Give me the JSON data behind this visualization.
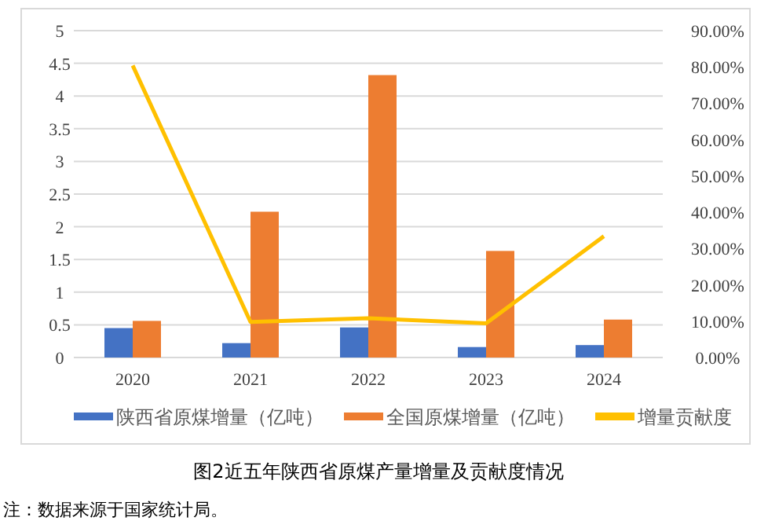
{
  "chart_data": {
    "type": "bar",
    "title": "图2近五年陕西省原煤产量增量及贡献度情况",
    "categories": [
      "2020",
      "2021",
      "2022",
      "2023",
      "2024"
    ],
    "series": [
      {
        "name": "陕西省原煤增量（亿吨）",
        "color": "#4472c4",
        "values": [
          0.45,
          0.22,
          0.46,
          0.16,
          0.19
        ]
      },
      {
        "name": "全国原煤增量（亿吨）",
        "color": "#ed7d31",
        "values": [
          0.56,
          2.23,
          4.32,
          1.63,
          0.58
        ]
      },
      {
        "name": "增量贡献度",
        "type": "line",
        "axis": "y2",
        "color": "#ffc000",
        "values": [
          80.4,
          9.8,
          10.8,
          9.4,
          33.4
        ]
      }
    ],
    "ylim": [
      0,
      5
    ],
    "yticks": [
      0,
      0.5,
      1,
      1.5,
      2,
      2.5,
      3,
      3.5,
      4,
      4.5,
      5
    ],
    "y2lim": [
      0,
      90
    ],
    "y2ticks": [
      {
        "value": 0,
        "label": "0.00%"
      },
      {
        "value": 10,
        "label": "10.00%"
      },
      {
        "value": 20,
        "label": "20.00%"
      },
      {
        "value": 30,
        "label": "30.00%"
      },
      {
        "value": 40,
        "label": "40.00%"
      },
      {
        "value": 50,
        "label": "50.00%"
      },
      {
        "value": 60,
        "label": "60.00%"
      },
      {
        "value": 70,
        "label": "70.00%"
      },
      {
        "value": 80,
        "label": "80.00%"
      },
      {
        "value": 90,
        "label": "90.00%"
      }
    ],
    "grid": "y",
    "legend": "bottom",
    "marker": "none",
    "annotations": [
      "注：数据来源于国家统计局。"
    ]
  }
}
